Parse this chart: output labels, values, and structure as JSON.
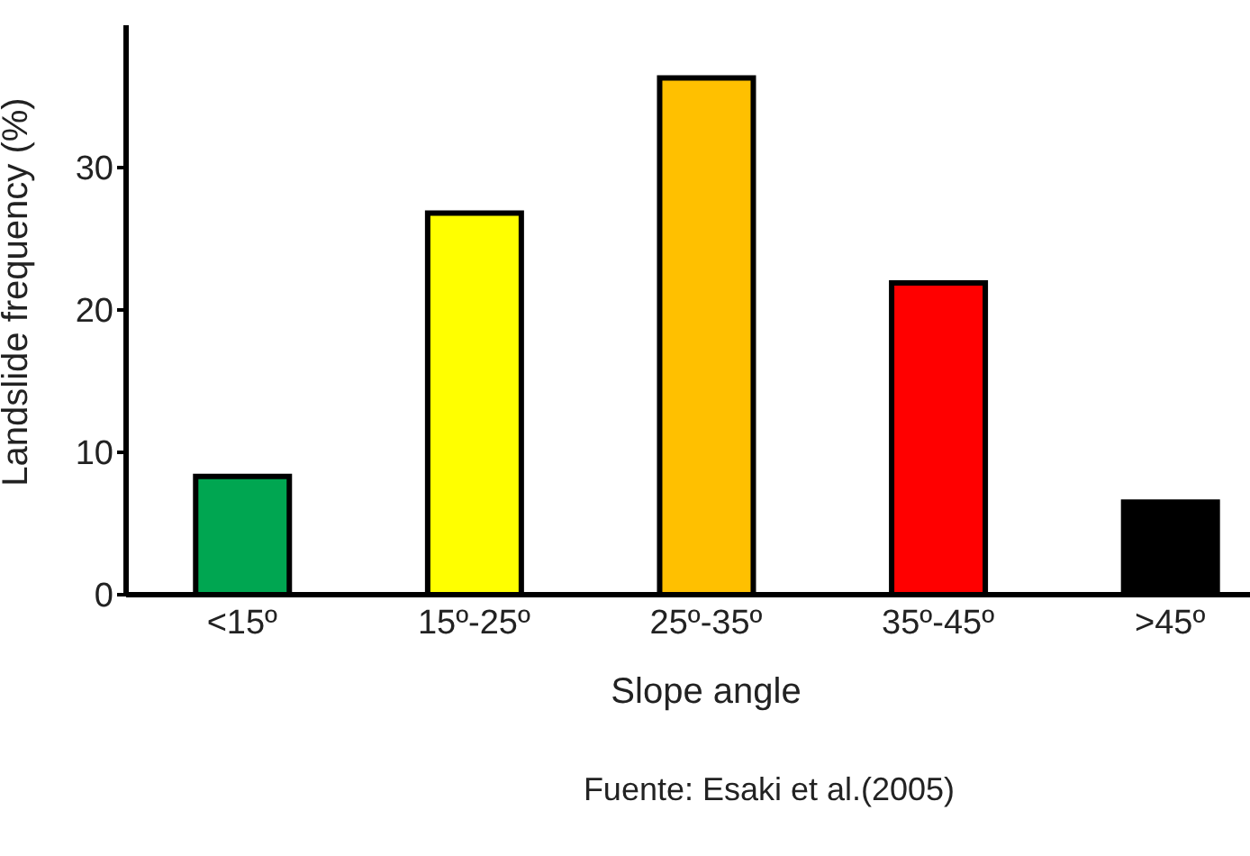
{
  "chart_data": {
    "type": "bar",
    "xlabel": "Slope angle",
    "ylabel": "Landslide frequency (%)",
    "categories": [
      "<15º",
      "15º-25º",
      "25º-35º",
      "35º-45º",
      ">45º"
    ],
    "values": [
      8.3,
      26.8,
      36.3,
      21.9,
      6.5
    ],
    "colors": [
      "#00a651",
      "#ffff00",
      "#ffc000",
      "#ff0000",
      "#000000"
    ],
    "ylim": [
      0,
      40
    ],
    "yticks": [
      0,
      10,
      20,
      30
    ],
    "grid": false,
    "annotations": [
      "Fuente: Esaki et al.(2005)"
    ]
  }
}
